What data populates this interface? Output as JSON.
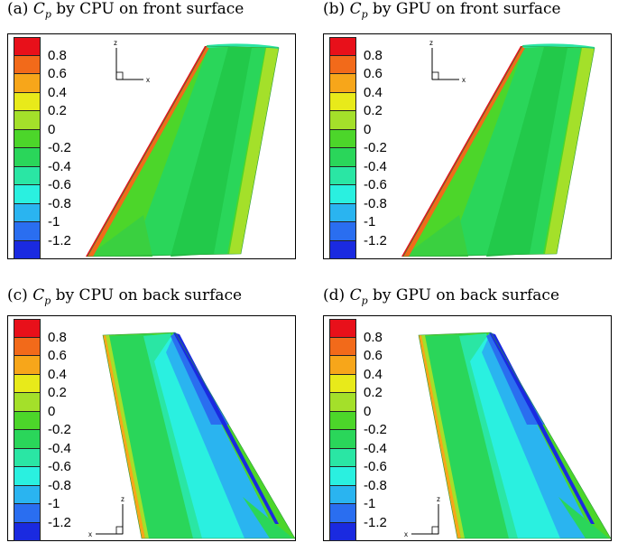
{
  "panels": [
    {
      "id": "a",
      "label": "(a)",
      "symbol": "C",
      "sub": "p",
      "text": "by CPU on front surface"
    },
    {
      "id": "b",
      "label": "(b)",
      "symbol": "C",
      "sub": "p",
      "text": "by GPU on front surface"
    },
    {
      "id": "c",
      "label": "(c)",
      "symbol": "C",
      "sub": "p",
      "text": "by CPU on back surface"
    },
    {
      "id": "d",
      "label": "(d)",
      "symbol": "C",
      "sub": "p",
      "text": "by GPU on back surface"
    }
  ],
  "colorbar": {
    "colors": [
      "#e8101a",
      "#f26a1a",
      "#f7a61a",
      "#e8ea1a",
      "#a4e02a",
      "#4cd62a",
      "#2ad65a",
      "#2ae6a4",
      "#2af0e0",
      "#2ab4f0",
      "#2a6ef0",
      "#1a2ae0"
    ],
    "ticks": [
      "0.8",
      "0.6",
      "0.4",
      "0.2",
      "0",
      "-0.2",
      "-0.4",
      "-0.6",
      "-0.8",
      "-1",
      "-1.2"
    ]
  },
  "axes": {
    "z": "z",
    "x": "x"
  }
}
